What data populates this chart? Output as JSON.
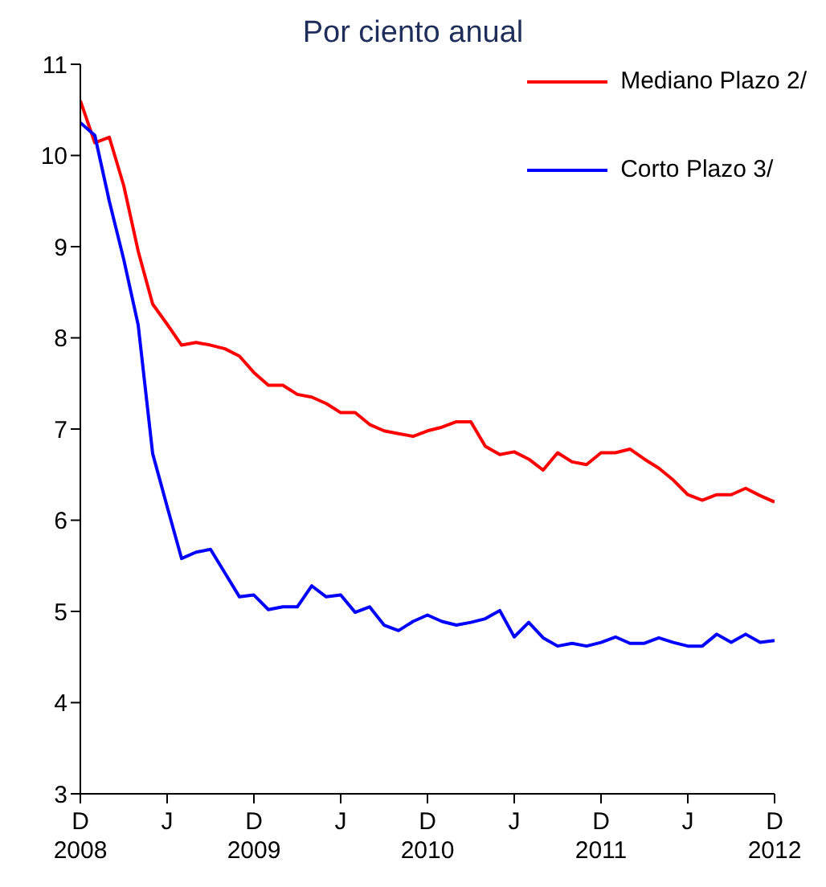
{
  "chart_data": {
    "type": "line",
    "title": "Por ciento anual",
    "x": [
      "2008-12",
      "2009-01",
      "2009-02",
      "2009-03",
      "2009-04",
      "2009-05",
      "2009-06",
      "2009-07",
      "2009-08",
      "2009-09",
      "2009-10",
      "2009-11",
      "2009-12",
      "2010-01",
      "2010-02",
      "2010-03",
      "2010-04",
      "2010-05",
      "2010-06",
      "2010-07",
      "2010-08",
      "2010-09",
      "2010-10",
      "2010-11",
      "2010-12",
      "2011-01",
      "2011-02",
      "2011-03",
      "2011-04",
      "2011-05",
      "2011-06",
      "2011-07",
      "2011-08",
      "2011-09",
      "2011-10",
      "2011-11",
      "2011-12",
      "2012-01",
      "2012-02",
      "2012-03",
      "2012-04",
      "2012-05",
      "2012-06",
      "2012-07",
      "2012-08",
      "2012-09",
      "2012-10",
      "2012-11",
      "2012-12"
    ],
    "series": [
      {
        "name": "Mediano Plazo 2/",
        "color": "#ff0000",
        "values": [
          10.6,
          10.14,
          10.2,
          9.67,
          8.95,
          8.37,
          8.15,
          7.92,
          7.95,
          7.92,
          7.88,
          7.8,
          7.62,
          7.48,
          7.48,
          7.38,
          7.35,
          7.28,
          7.18,
          7.18,
          7.05,
          6.98,
          6.95,
          6.92,
          6.98,
          7.02,
          7.08,
          7.08,
          6.81,
          6.72,
          6.75,
          6.67,
          6.55,
          6.74,
          6.64,
          6.61,
          6.74,
          6.74,
          6.78,
          6.67,
          6.57,
          6.44,
          6.28,
          6.22,
          6.28,
          6.28,
          6.35,
          6.27,
          6.2
        ]
      },
      {
        "name": "Corto Plazo 3/",
        "color": "#0000ff",
        "values": [
          10.36,
          10.22,
          9.5,
          8.86,
          8.14,
          6.73,
          6.15,
          5.58,
          5.65,
          5.68,
          5.42,
          5.16,
          5.18,
          5.02,
          5.05,
          5.05,
          5.28,
          5.16,
          5.18,
          4.99,
          5.05,
          4.85,
          4.79,
          4.89,
          4.96,
          4.89,
          4.85,
          4.88,
          4.92,
          5.01,
          4.72,
          4.88,
          4.71,
          4.62,
          4.65,
          4.62,
          4.66,
          4.72,
          4.65,
          4.65,
          4.71,
          4.66,
          4.62,
          4.62,
          4.75,
          4.66,
          4.75,
          4.66,
          4.68
        ]
      }
    ],
    "xlim": [
      "2008-12",
      "2012-12"
    ],
    "xticks": [
      {
        "value": "2008-12",
        "label": "D\n2008"
      },
      {
        "value": "2009-06",
        "label": "J"
      },
      {
        "value": "2009-12",
        "label": "D\n2009"
      },
      {
        "value": "2010-06",
        "label": "J"
      },
      {
        "value": "2010-12",
        "label": "D\n2010"
      },
      {
        "value": "2011-06",
        "label": "J"
      },
      {
        "value": "2011-12",
        "label": "D\n2011"
      },
      {
        "value": "2012-06",
        "label": "J"
      },
      {
        "value": "2012-12",
        "label": "D\n2012"
      }
    ],
    "ylim": [
      3,
      11
    ],
    "yticks": [
      3,
      4,
      5,
      6,
      7,
      8,
      9,
      10,
      11
    ],
    "grid": false,
    "legend": "top right",
    "marker": "none",
    "line_style": "solid"
  }
}
